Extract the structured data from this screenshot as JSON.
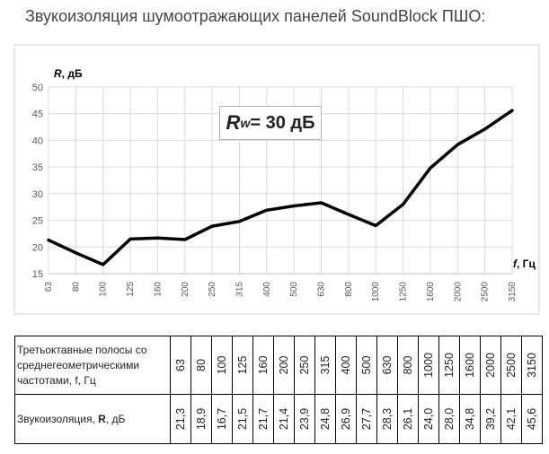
{
  "title": "Звукоизоляция шумоотражающих панелей SoundBlock ПШО:",
  "chart_data": {
    "type": "line",
    "title": "",
    "ylabel_prefix": "R",
    "ylabel_suffix": ", дБ",
    "xlabel_prefix": "f",
    "xlabel_suffix": ", Гц",
    "ylim": [
      15,
      50
    ],
    "yticks": [
      15,
      20,
      25,
      30,
      35,
      40,
      45,
      50
    ],
    "grid": true,
    "categories": [
      "63",
      "80",
      "100",
      "125",
      "160",
      "200",
      "250",
      "315",
      "400",
      "500",
      "630",
      "800",
      "1000",
      "1250",
      "1600",
      "2000",
      "2500",
      "3150"
    ],
    "series": [
      {
        "values": [
          21.3,
          18.9,
          16.7,
          21.5,
          21.7,
          21.4,
          23.9,
          24.8,
          26.9,
          27.7,
          28.3,
          26.1,
          24.0,
          28.0,
          34.8,
          39.2,
          42.1,
          45.6
        ]
      }
    ],
    "annotation": {
      "symbol": "R",
      "subscript": "w",
      "text": "= 30 дБ"
    },
    "line_color": "#000000",
    "grid_color": "#d9d9d9"
  },
  "table": {
    "row1_label": "Третьоктавные полосы со среднегеометрическими частотами, f, Гц",
    "row2_label_prefix": "Звукоизоляция, ",
    "row2_label_bold": "R",
    "row2_label_suffix": ", дБ",
    "frequencies": [
      "63",
      "80",
      "100",
      "125",
      "160",
      "200",
      "250",
      "315",
      "400",
      "500",
      "630",
      "800",
      "1000",
      "1250",
      "1600",
      "2000",
      "2500",
      "3150"
    ],
    "values": [
      "21,3",
      "18,9",
      "16,7",
      "21,5",
      "21,7",
      "21,4",
      "23,9",
      "24,8",
      "26,9",
      "27,7",
      "28,3",
      "26,1",
      "24,0",
      "28,0",
      "34,8",
      "39,2",
      "42,1",
      "45,6"
    ]
  }
}
